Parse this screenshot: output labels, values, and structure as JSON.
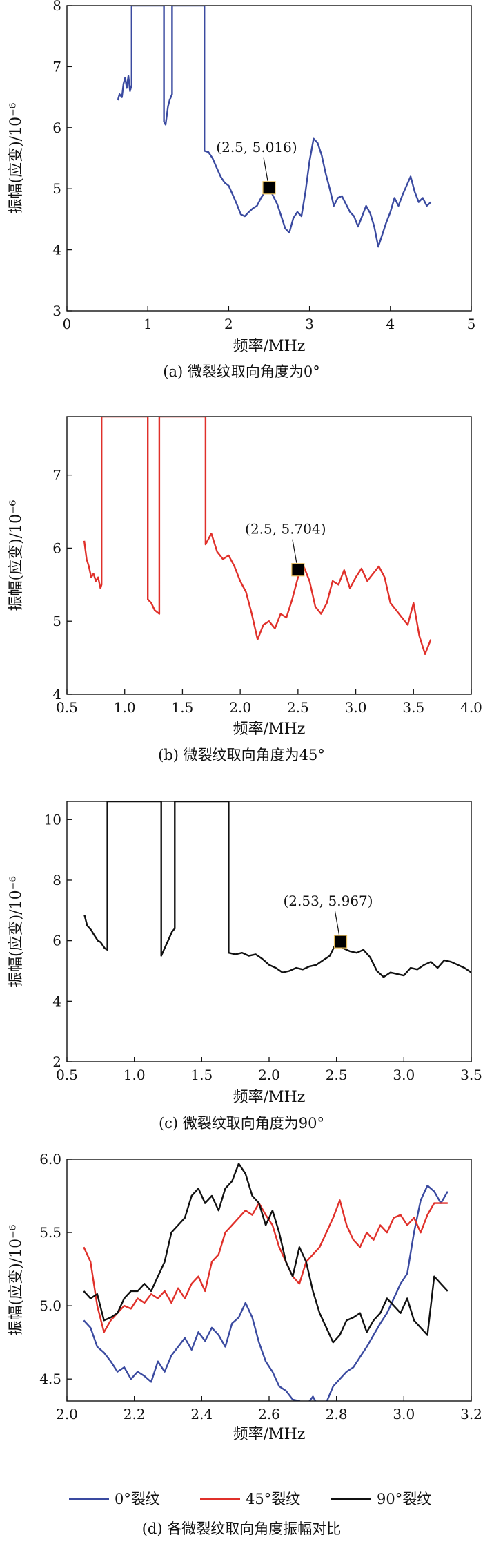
{
  "chart_data": [
    {
      "type": "line",
      "xlabel": "频率/MHz",
      "ylabel": "振幅(应变)/10⁻⁶",
      "caption": "(a) 微裂纹取向角度为0°",
      "xlim": [
        0,
        5
      ],
      "ylim": [
        3,
        8
      ],
      "xticks": [
        0,
        1,
        2,
        3,
        4,
        5
      ],
      "yticks": [
        3,
        4,
        5,
        6,
        7,
        8
      ],
      "xtick_labels": [
        "0",
        "1",
        "2",
        "3",
        "4",
        "5"
      ],
      "ytick_labels": [
        "3",
        "4",
        "5",
        "6",
        "7",
        "8"
      ],
      "grid": false,
      "annotation": {
        "text": "(2.5, 5.016)",
        "x": 2.5,
        "y": 5.016
      },
      "series": [
        {
          "color": "#3a4aa0",
          "x": [
            0.63,
            0.65,
            0.68,
            0.7,
            0.72,
            0.74,
            0.76,
            0.78,
            0.8,
            0.8,
            0.82,
            1.2,
            1.2,
            1.22,
            1.25,
            1.27,
            1.3,
            1.3,
            1.32,
            1.68,
            1.7,
            1.7,
            1.75,
            1.8,
            1.85,
            1.9,
            1.95,
            2.0,
            2.05,
            2.1,
            2.15,
            2.2,
            2.25,
            2.3,
            2.35,
            2.4,
            2.45,
            2.5,
            2.55,
            2.6,
            2.65,
            2.7,
            2.75,
            2.8,
            2.85,
            2.9,
            2.95,
            3.0,
            3.05,
            3.1,
            3.15,
            3.2,
            3.25,
            3.3,
            3.35,
            3.4,
            3.45,
            3.5,
            3.55,
            3.6,
            3.65,
            3.7,
            3.75,
            3.8,
            3.85,
            3.9,
            3.95,
            4.0,
            4.05,
            4.1,
            4.15,
            4.2,
            4.25,
            4.3,
            4.35,
            4.4,
            4.45,
            4.5
          ],
          "y": [
            6.45,
            6.55,
            6.5,
            6.72,
            6.82,
            6.65,
            6.85,
            6.6,
            6.7,
            8.0,
            8.0,
            8.0,
            6.1,
            6.05,
            6.35,
            6.45,
            6.55,
            8.0,
            8.0,
            8.0,
            8.0,
            5.62,
            5.6,
            5.5,
            5.35,
            5.2,
            5.1,
            5.05,
            4.9,
            4.75,
            4.58,
            4.55,
            4.62,
            4.68,
            4.72,
            4.85,
            4.95,
            5.02,
            4.88,
            4.75,
            4.55,
            4.35,
            4.28,
            4.52,
            4.62,
            4.55,
            4.95,
            5.45,
            5.82,
            5.75,
            5.55,
            5.25,
            5.0,
            4.72,
            4.85,
            4.88,
            4.75,
            4.62,
            4.55,
            4.38,
            4.55,
            4.72,
            4.6,
            4.38,
            4.05,
            4.25,
            4.45,
            4.62,
            4.85,
            4.72,
            4.9,
            5.05,
            5.2,
            4.95,
            4.78,
            4.85,
            4.72,
            4.78
          ]
        }
      ]
    },
    {
      "type": "line",
      "xlabel": "频率/MHz",
      "ylabel": "振幅(应变)/10⁻⁶",
      "caption": "(b) 微裂纹取向角度为45°",
      "xlim": [
        0.5,
        4.0
      ],
      "ylim": [
        4,
        7.8
      ],
      "xticks": [
        0.5,
        1.0,
        1.5,
        2.0,
        2.5,
        3.0,
        3.5,
        4.0
      ],
      "yticks": [
        4,
        5,
        6,
        7
      ],
      "xtick_labels": [
        "0.5",
        "1.0",
        "1.5",
        "2.0",
        "2.5",
        "3.0",
        "3.5",
        "4.0"
      ],
      "ytick_labels": [
        "4",
        "5",
        "6",
        "7"
      ],
      "grid": false,
      "annotation": {
        "text": "(2.5, 5.704)",
        "x": 2.5,
        "y": 5.704
      },
      "series": [
        {
          "color": "#e0302a",
          "x": [
            0.65,
            0.67,
            0.69,
            0.71,
            0.73,
            0.75,
            0.77,
            0.79,
            0.8,
            0.8,
            0.82,
            1.18,
            1.2,
            1.2,
            1.23,
            1.26,
            1.3,
            1.3,
            1.32,
            1.68,
            1.7,
            1.7,
            1.75,
            1.8,
            1.85,
            1.9,
            1.95,
            2.0,
            2.05,
            2.1,
            2.15,
            2.2,
            2.25,
            2.3,
            2.35,
            2.4,
            2.45,
            2.5,
            2.55,
            2.6,
            2.65,
            2.7,
            2.75,
            2.8,
            2.85,
            2.9,
            2.95,
            3.0,
            3.05,
            3.1,
            3.15,
            3.2,
            3.25,
            3.3,
            3.35,
            3.4,
            3.45,
            3.5,
            3.55,
            3.6,
            3.65
          ],
          "y": [
            6.1,
            5.85,
            5.75,
            5.6,
            5.65,
            5.55,
            5.6,
            5.45,
            5.5,
            7.8,
            7.8,
            7.8,
            7.8,
            5.3,
            5.25,
            5.15,
            5.1,
            7.8,
            7.8,
            7.8,
            7.8,
            6.05,
            6.2,
            5.95,
            5.85,
            5.9,
            5.75,
            5.55,
            5.4,
            5.1,
            4.75,
            4.95,
            5.0,
            4.9,
            5.1,
            5.05,
            5.3,
            5.6,
            5.75,
            5.55,
            5.2,
            5.1,
            5.25,
            5.55,
            5.5,
            5.7,
            5.45,
            5.6,
            5.72,
            5.55,
            5.65,
            5.75,
            5.6,
            5.25,
            5.15,
            5.05,
            4.95,
            5.25,
            4.8,
            4.55,
            4.75
          ]
        }
      ]
    },
    {
      "type": "line",
      "xlabel": "频率/MHz",
      "ylabel": "振幅(应变)/10⁻⁶",
      "caption": "(c) 微裂纹取向角度为90°",
      "xlim": [
        0.5,
        3.5
      ],
      "ylim": [
        2,
        10.6
      ],
      "xticks": [
        0.5,
        1.0,
        1.5,
        2.0,
        2.5,
        3.0,
        3.5
      ],
      "yticks": [
        2,
        4,
        6,
        8,
        10
      ],
      "xtick_labels": [
        "0.5",
        "1.0",
        "1.5",
        "2.0",
        "2.5",
        "3.0",
        "3.5"
      ],
      "ytick_labels": [
        "2",
        "4",
        "6",
        "8",
        "10"
      ],
      "grid": false,
      "annotation": {
        "text": "(2.53, 5.967)",
        "x": 2.53,
        "y": 5.967
      },
      "series": [
        {
          "color": "#111111",
          "x": [
            0.63,
            0.65,
            0.68,
            0.7,
            0.73,
            0.75,
            0.78,
            0.8,
            0.8,
            0.82,
            1.2,
            1.2,
            1.22,
            1.25,
            1.28,
            1.3,
            1.3,
            1.32,
            1.68,
            1.7,
            1.7,
            1.75,
            1.8,
            1.85,
            1.9,
            1.95,
            2.0,
            2.05,
            2.1,
            2.15,
            2.2,
            2.25,
            2.3,
            2.35,
            2.4,
            2.45,
            2.5,
            2.55,
            2.6,
            2.65,
            2.7,
            2.75,
            2.8,
            2.85,
            2.9,
            2.95,
            3.0,
            3.05,
            3.1,
            3.15,
            3.2,
            3.25,
            3.3,
            3.35,
            3.4,
            3.45,
            3.5
          ],
          "y": [
            6.85,
            6.5,
            6.35,
            6.2,
            6.0,
            5.95,
            5.75,
            5.7,
            10.6,
            10.6,
            10.6,
            5.5,
            5.7,
            6.0,
            6.3,
            6.4,
            10.6,
            10.6,
            10.6,
            10.6,
            5.6,
            5.55,
            5.6,
            5.5,
            5.55,
            5.4,
            5.2,
            5.1,
            4.95,
            5.0,
            5.1,
            5.05,
            5.15,
            5.2,
            5.35,
            5.5,
            5.95,
            5.75,
            5.65,
            5.6,
            5.7,
            5.45,
            5.0,
            4.8,
            4.95,
            4.9,
            4.85,
            5.1,
            5.05,
            5.2,
            5.3,
            5.1,
            5.35,
            5.3,
            5.2,
            5.1,
            4.95
          ]
        }
      ]
    },
    {
      "type": "line",
      "xlabel": "频率/MHz",
      "ylabel": "振幅(应变)/10⁻⁶",
      "caption": "(d) 各微裂纹取向角度振幅对比",
      "xlim": [
        2.0,
        3.2
      ],
      "ylim": [
        4.35,
        6.0
      ],
      "xticks": [
        2.0,
        2.2,
        2.4,
        2.6,
        2.8,
        3.0,
        3.2
      ],
      "yticks": [
        4.5,
        5.0,
        5.5,
        6.0
      ],
      "xtick_labels": [
        "2.0",
        "2.2",
        "2.4",
        "2.6",
        "2.8",
        "3.0",
        "3.2"
      ],
      "ytick_labels": [
        "4.5",
        "5.0",
        "5.5",
        "6.0"
      ],
      "grid": false,
      "legend_position": "bottom",
      "series": [
        {
          "name": "0°裂纹",
          "color": "#3a4aa0",
          "x": [
            2.05,
            2.07,
            2.09,
            2.11,
            2.13,
            2.15,
            2.17,
            2.19,
            2.21,
            2.23,
            2.25,
            2.27,
            2.29,
            2.31,
            2.33,
            2.35,
            2.37,
            2.39,
            2.41,
            2.43,
            2.45,
            2.47,
            2.49,
            2.51,
            2.53,
            2.55,
            2.57,
            2.59,
            2.61,
            2.63,
            2.65,
            2.67,
            2.69,
            2.71,
            2.73,
            2.75,
            2.77,
            2.79,
            2.81,
            2.83,
            2.85,
            2.87,
            2.89,
            2.91,
            2.93,
            2.95,
            2.97,
            2.99,
            3.01,
            3.03,
            3.05,
            3.07,
            3.09,
            3.11,
            3.13
          ],
          "y": [
            4.9,
            4.85,
            4.72,
            4.68,
            4.62,
            4.55,
            4.58,
            4.5,
            4.55,
            4.52,
            4.48,
            4.62,
            4.55,
            4.66,
            4.72,
            4.78,
            4.7,
            4.82,
            4.76,
            4.85,
            4.8,
            4.72,
            4.88,
            4.92,
            5.02,
            4.92,
            4.75,
            4.62,
            4.55,
            4.45,
            4.42,
            4.36,
            4.35,
            4.32,
            4.38,
            4.3,
            4.34,
            4.45,
            4.5,
            4.55,
            4.58,
            4.65,
            4.72,
            4.8,
            4.88,
            4.95,
            5.05,
            5.15,
            5.22,
            5.5,
            5.72,
            5.82,
            5.78,
            5.7,
            5.78
          ]
        },
        {
          "name": "45°裂纹",
          "color": "#e0302a",
          "x": [
            2.05,
            2.07,
            2.09,
            2.11,
            2.13,
            2.15,
            2.17,
            2.19,
            2.21,
            2.23,
            2.25,
            2.27,
            2.29,
            2.31,
            2.33,
            2.35,
            2.37,
            2.39,
            2.41,
            2.43,
            2.45,
            2.47,
            2.49,
            2.51,
            2.53,
            2.55,
            2.57,
            2.59,
            2.61,
            2.63,
            2.65,
            2.67,
            2.69,
            2.71,
            2.73,
            2.75,
            2.77,
            2.79,
            2.81,
            2.83,
            2.85,
            2.87,
            2.89,
            2.91,
            2.93,
            2.95,
            2.97,
            2.99,
            3.01,
            3.03,
            3.05,
            3.07,
            3.09,
            3.11,
            3.13
          ],
          "y": [
            5.4,
            5.3,
            5.0,
            4.82,
            4.9,
            4.95,
            5.0,
            4.98,
            5.05,
            5.02,
            5.08,
            5.05,
            5.1,
            5.02,
            5.12,
            5.05,
            5.15,
            5.2,
            5.1,
            5.3,
            5.35,
            5.5,
            5.55,
            5.6,
            5.65,
            5.62,
            5.7,
            5.62,
            5.55,
            5.4,
            5.3,
            5.2,
            5.15,
            5.3,
            5.35,
            5.4,
            5.5,
            5.6,
            5.72,
            5.55,
            5.45,
            5.4,
            5.5,
            5.45,
            5.55,
            5.5,
            5.6,
            5.62,
            5.55,
            5.6,
            5.5,
            5.62,
            5.7,
            5.7,
            5.7
          ]
        },
        {
          "name": "90°裂纹",
          "color": "#111111",
          "x": [
            2.05,
            2.07,
            2.09,
            2.11,
            2.13,
            2.15,
            2.17,
            2.19,
            2.21,
            2.23,
            2.25,
            2.27,
            2.29,
            2.31,
            2.33,
            2.35,
            2.37,
            2.39,
            2.41,
            2.43,
            2.45,
            2.47,
            2.49,
            2.51,
            2.53,
            2.55,
            2.57,
            2.59,
            2.61,
            2.63,
            2.65,
            2.67,
            2.69,
            2.71,
            2.73,
            2.75,
            2.77,
            2.79,
            2.81,
            2.83,
            2.85,
            2.87,
            2.89,
            2.91,
            2.93,
            2.95,
            2.97,
            2.99,
            3.01,
            3.03,
            3.05,
            3.07,
            3.09,
            3.11,
            3.13
          ],
          "y": [
            5.1,
            5.05,
            5.08,
            4.9,
            4.92,
            4.95,
            5.05,
            5.1,
            5.1,
            5.15,
            5.1,
            5.2,
            5.3,
            5.5,
            5.55,
            5.6,
            5.75,
            5.8,
            5.7,
            5.75,
            5.65,
            5.8,
            5.85,
            5.97,
            5.9,
            5.75,
            5.7,
            5.55,
            5.65,
            5.5,
            5.3,
            5.2,
            5.4,
            5.3,
            5.1,
            4.95,
            4.85,
            4.75,
            4.8,
            4.9,
            4.92,
            4.95,
            4.82,
            4.9,
            4.95,
            5.05,
            5.0,
            4.95,
            5.05,
            4.9,
            4.85,
            4.8,
            5.2,
            5.15,
            5.1
          ]
        }
      ]
    }
  ]
}
